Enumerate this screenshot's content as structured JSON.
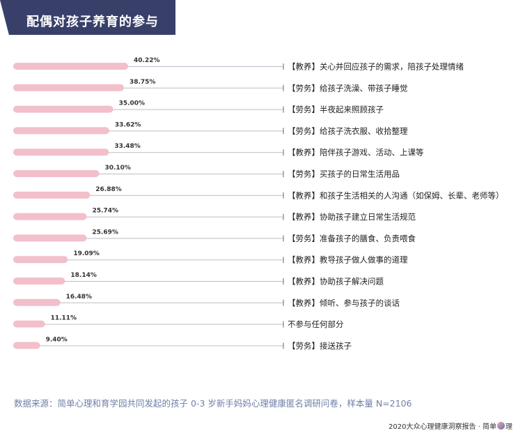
{
  "header": {
    "title": "配偶对孩子养育的参与"
  },
  "colors": {
    "bar": "#f2bfca",
    "line": "#b9bdc8",
    "banner": "#38406a",
    "accent": "#e39aac"
  },
  "chart_data": {
    "type": "bar",
    "orientation": "horizontal",
    "title": "配偶对孩子养育的参与",
    "xlabel": "",
    "ylabel": "",
    "xlim": [
      0,
      100
    ],
    "unit": "%",
    "categories": [
      "【教养】关心并回应孩子的需求，陪孩子处理情绪",
      "【劳务】给孩子洗澡、带孩子睡觉",
      "【劳务】半夜起来照顾孩子",
      "【劳务】给孩子洗衣服、收拾整理",
      "【教养】陪伴孩子游戏、活动、上课等",
      "【劳务】买孩子的日常生活用品",
      "【教养】和孩子生活相关的人沟通（如保姆、长辈、老师等）",
      "【教养】协助孩子建立日常生活规范",
      "【劳务】准备孩子的膳食、负责喂食",
      "【教养】教导孩子做人做事的道理",
      "【教养】协助孩子解决问题",
      "【教养】倾听、参与孩子的谈话",
      "不参与任何部分",
      "【劳务】接送孩子"
    ],
    "values": [
      40.22,
      38.75,
      35.0,
      33.62,
      33.48,
      30.1,
      26.88,
      25.74,
      25.69,
      19.09,
      18.14,
      16.48,
      11.11,
      9.4
    ],
    "value_labels": [
      "40.22%",
      "38.75%",
      "35.00%",
      "33.62%",
      "33.48%",
      "30.10%",
      "26.88%",
      "25.74%",
      "25.69%",
      "19.09%",
      "18.14%",
      "16.48%",
      "11.11%",
      "9.40%"
    ]
  },
  "source": "数据来源：简单心理和育学园共同发起的孩子 0-3 岁新手妈妈心理健康匿名调研问卷，样本量 N=2106",
  "footer": {
    "text": "2020大众心理健康洞察报告 · 简单",
    "logo_icon": "brain-logo-icon",
    "suffix": "理"
  }
}
